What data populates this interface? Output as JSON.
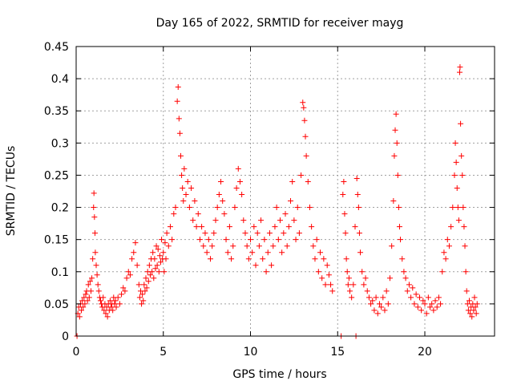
{
  "chart_data": {
    "type": "scatter",
    "title": "Day 165 of 2022, SRMTID for receiver mayg",
    "xlabel": "GPS time / hours",
    "ylabel": "SRMTID / TECUs",
    "xlim": [
      0,
      24
    ],
    "ylim": [
      0,
      0.45
    ],
    "xticks": [
      0,
      5,
      10,
      15,
      20
    ],
    "xtick_labels": [
      "0",
      "5",
      "10",
      "15",
      "20"
    ],
    "yticks": [
      0,
      0.05,
      0.1,
      0.15,
      0.2,
      0.25,
      0.3,
      0.35,
      0.4,
      0.45
    ],
    "ytick_labels": [
      "0",
      "0.05",
      "0.1",
      "0.15",
      "0.2",
      "0.25",
      "0.3",
      "0.35",
      "0.4",
      "0.45"
    ],
    "grid": true,
    "marker": "plus",
    "color": "#ff0000",
    "series": [
      {
        "name": "SRMTID",
        "points": [
          [
            0.05,
            0.0
          ],
          [
            0.1,
            0.035
          ],
          [
            0.15,
            0.045
          ],
          [
            0.2,
            0.03
          ],
          [
            0.25,
            0.05
          ],
          [
            0.3,
            0.04
          ],
          [
            0.35,
            0.055
          ],
          [
            0.4,
            0.045
          ],
          [
            0.45,
            0.06
          ],
          [
            0.5,
            0.05
          ],
          [
            0.55,
            0.065
          ],
          [
            0.6,
            0.07
          ],
          [
            0.65,
            0.055
          ],
          [
            0.7,
            0.08
          ],
          [
            0.75,
            0.06
          ],
          [
            0.8,
            0.085
          ],
          [
            0.85,
            0.07
          ],
          [
            0.9,
            0.09
          ],
          [
            0.95,
            0.12
          ],
          [
            1.0,
            0.2
          ],
          [
            1.02,
            0.222
          ],
          [
            1.05,
            0.185
          ],
          [
            1.08,
            0.16
          ],
          [
            1.1,
            0.13
          ],
          [
            1.15,
            0.11
          ],
          [
            1.2,
            0.095
          ],
          [
            1.25,
            0.08
          ],
          [
            1.3,
            0.07
          ],
          [
            1.35,
            0.06
          ],
          [
            1.4,
            0.055
          ],
          [
            1.45,
            0.05
          ],
          [
            1.5,
            0.045
          ],
          [
            1.55,
            0.06
          ],
          [
            1.6,
            0.04
          ],
          [
            1.65,
            0.05
          ],
          [
            1.7,
            0.035
          ],
          [
            1.75,
            0.045
          ],
          [
            1.8,
            0.03
          ],
          [
            1.85,
            0.05
          ],
          [
            1.9,
            0.04
          ],
          [
            1.95,
            0.055
          ],
          [
            2.0,
            0.045
          ],
          [
            2.05,
            0.05
          ],
          [
            2.1,
            0.04
          ],
          [
            2.15,
            0.06
          ],
          [
            2.2,
            0.05
          ],
          [
            2.25,
            0.055
          ],
          [
            2.3,
            0.045
          ],
          [
            2.4,
            0.06
          ],
          [
            2.5,
            0.05
          ],
          [
            2.6,
            0.065
          ],
          [
            2.7,
            0.075
          ],
          [
            2.8,
            0.07
          ],
          [
            2.9,
            0.09
          ],
          [
            3.0,
            0.1
          ],
          [
            3.1,
            0.095
          ],
          [
            3.2,
            0.12
          ],
          [
            3.3,
            0.13
          ],
          [
            3.4,
            0.145
          ],
          [
            3.5,
            0.11
          ],
          [
            3.6,
            0.08
          ],
          [
            3.65,
            0.06
          ],
          [
            3.7,
            0.07
          ],
          [
            3.75,
            0.05
          ],
          [
            3.8,
            0.065
          ],
          [
            3.85,
            0.055
          ],
          [
            3.9,
            0.08
          ],
          [
            3.95,
            0.07
          ],
          [
            4.0,
            0.09
          ],
          [
            4.05,
            0.075
          ],
          [
            4.1,
            0.1
          ],
          [
            4.15,
            0.085
          ],
          [
            4.2,
            0.11
          ],
          [
            4.25,
            0.095
          ],
          [
            4.3,
            0.12
          ],
          [
            4.35,
            0.1
          ],
          [
            4.4,
            0.13
          ],
          [
            4.45,
            0.09
          ],
          [
            4.5,
            0.12
          ],
          [
            4.55,
            0.105
          ],
          [
            4.6,
            0.14
          ],
          [
            4.65,
            0.11
          ],
          [
            4.7,
            0.135
          ],
          [
            4.75,
            0.1
          ],
          [
            4.8,
            0.125
          ],
          [
            4.85,
            0.115
          ],
          [
            4.9,
            0.15
          ],
          [
            4.95,
            0.12
          ],
          [
            5.0,
            0.13
          ],
          [
            5.05,
            0.1
          ],
          [
            5.1,
            0.145
          ],
          [
            5.15,
            0.12
          ],
          [
            5.2,
            0.16
          ],
          [
            5.3,
            0.14
          ],
          [
            5.4,
            0.17
          ],
          [
            5.5,
            0.15
          ],
          [
            5.6,
            0.19
          ],
          [
            5.7,
            0.2
          ],
          [
            5.8,
            0.365
          ],
          [
            5.85,
            0.387
          ],
          [
            5.9,
            0.338
          ],
          [
            5.95,
            0.315
          ],
          [
            6.0,
            0.28
          ],
          [
            6.05,
            0.25
          ],
          [
            6.1,
            0.23
          ],
          [
            6.15,
            0.21
          ],
          [
            6.2,
            0.26
          ],
          [
            6.3,
            0.22
          ],
          [
            6.4,
            0.24
          ],
          [
            6.5,
            0.2
          ],
          [
            6.6,
            0.23
          ],
          [
            6.7,
            0.18
          ],
          [
            6.8,
            0.21
          ],
          [
            6.9,
            0.17
          ],
          [
            7.0,
            0.19
          ],
          [
            7.1,
            0.15
          ],
          [
            7.2,
            0.17
          ],
          [
            7.3,
            0.14
          ],
          [
            7.4,
            0.16
          ],
          [
            7.5,
            0.13
          ],
          [
            7.6,
            0.15
          ],
          [
            7.7,
            0.12
          ],
          [
            7.8,
            0.14
          ],
          [
            7.9,
            0.16
          ],
          [
            8.0,
            0.18
          ],
          [
            8.1,
            0.2
          ],
          [
            8.2,
            0.22
          ],
          [
            8.3,
            0.24
          ],
          [
            8.4,
            0.21
          ],
          [
            8.5,
            0.19
          ],
          [
            8.6,
            0.15
          ],
          [
            8.7,
            0.13
          ],
          [
            8.8,
            0.17
          ],
          [
            8.9,
            0.12
          ],
          [
            9.0,
            0.14
          ],
          [
            9.1,
            0.2
          ],
          [
            9.2,
            0.23
          ],
          [
            9.3,
            0.26
          ],
          [
            9.4,
            0.24
          ],
          [
            9.5,
            0.22
          ],
          [
            9.6,
            0.18
          ],
          [
            9.7,
            0.16
          ],
          [
            9.8,
            0.14
          ],
          [
            9.9,
            0.12
          ],
          [
            10.0,
            0.15
          ],
          [
            10.1,
            0.13
          ],
          [
            10.2,
            0.17
          ],
          [
            10.3,
            0.11
          ],
          [
            10.4,
            0.16
          ],
          [
            10.5,
            0.14
          ],
          [
            10.6,
            0.18
          ],
          [
            10.7,
            0.12
          ],
          [
            10.8,
            0.15
          ],
          [
            10.9,
            0.1
          ],
          [
            11.0,
            0.13
          ],
          [
            11.1,
            0.16
          ],
          [
            11.2,
            0.11
          ],
          [
            11.3,
            0.14
          ],
          [
            11.4,
            0.17
          ],
          [
            11.5,
            0.2
          ],
          [
            11.6,
            0.15
          ],
          [
            11.7,
            0.18
          ],
          [
            11.8,
            0.13
          ],
          [
            11.9,
            0.16
          ],
          [
            12.0,
            0.19
          ],
          [
            12.1,
            0.14
          ],
          [
            12.2,
            0.17
          ],
          [
            12.3,
            0.21
          ],
          [
            12.4,
            0.24
          ],
          [
            12.5,
            0.18
          ],
          [
            12.6,
            0.15
          ],
          [
            12.7,
            0.2
          ],
          [
            12.8,
            0.16
          ],
          [
            12.9,
            0.25
          ],
          [
            13.0,
            0.363
          ],
          [
            13.05,
            0.355
          ],
          [
            13.1,
            0.335
          ],
          [
            13.15,
            0.31
          ],
          [
            13.2,
            0.28
          ],
          [
            13.3,
            0.24
          ],
          [
            13.4,
            0.2
          ],
          [
            13.5,
            0.17
          ],
          [
            13.6,
            0.14
          ],
          [
            13.7,
            0.12
          ],
          [
            13.8,
            0.15
          ],
          [
            13.9,
            0.1
          ],
          [
            14.0,
            0.13
          ],
          [
            14.1,
            0.09
          ],
          [
            14.2,
            0.12
          ],
          [
            14.3,
            0.08
          ],
          [
            14.4,
            0.11
          ],
          [
            14.5,
            0.095
          ],
          [
            14.6,
            0.08
          ],
          [
            14.7,
            0.07
          ],
          [
            15.2,
            0.0
          ],
          [
            15.3,
            0.22
          ],
          [
            15.35,
            0.24
          ],
          [
            15.4,
            0.19
          ],
          [
            15.45,
            0.16
          ],
          [
            15.5,
            0.12
          ],
          [
            15.55,
            0.1
          ],
          [
            15.6,
            0.08
          ],
          [
            15.65,
            0.09
          ],
          [
            15.7,
            0.07
          ],
          [
            15.8,
            0.06
          ],
          [
            15.9,
            0.08
          ],
          [
            16.0,
            0.17
          ],
          [
            16.05,
            0.0
          ],
          [
            16.1,
            0.245
          ],
          [
            16.15,
            0.22
          ],
          [
            16.2,
            0.2
          ],
          [
            16.25,
            0.16
          ],
          [
            16.3,
            0.13
          ],
          [
            16.4,
            0.1
          ],
          [
            16.5,
            0.08
          ],
          [
            16.6,
            0.09
          ],
          [
            16.7,
            0.07
          ],
          [
            16.8,
            0.06
          ],
          [
            16.9,
            0.05
          ],
          [
            17.0,
            0.055
          ],
          [
            17.1,
            0.04
          ],
          [
            17.2,
            0.06
          ],
          [
            17.3,
            0.035
          ],
          [
            17.4,
            0.05
          ],
          [
            17.5,
            0.045
          ],
          [
            17.6,
            0.06
          ],
          [
            17.7,
            0.04
          ],
          [
            17.8,
            0.07
          ],
          [
            17.9,
            0.05
          ],
          [
            18.0,
            0.09
          ],
          [
            18.1,
            0.14
          ],
          [
            18.2,
            0.21
          ],
          [
            18.25,
            0.28
          ],
          [
            18.3,
            0.32
          ],
          [
            18.35,
            0.345
          ],
          [
            18.4,
            0.3
          ],
          [
            18.45,
            0.25
          ],
          [
            18.5,
            0.2
          ],
          [
            18.55,
            0.17
          ],
          [
            18.6,
            0.15
          ],
          [
            18.7,
            0.12
          ],
          [
            18.8,
            0.1
          ],
          [
            18.9,
            0.09
          ],
          [
            19.0,
            0.07
          ],
          [
            19.1,
            0.08
          ],
          [
            19.2,
            0.06
          ],
          [
            19.3,
            0.075
          ],
          [
            19.4,
            0.05
          ],
          [
            19.5,
            0.065
          ],
          [
            19.6,
            0.045
          ],
          [
            19.7,
            0.06
          ],
          [
            19.8,
            0.04
          ],
          [
            19.9,
            0.055
          ],
          [
            20.0,
            0.05
          ],
          [
            20.1,
            0.035
          ],
          [
            20.2,
            0.06
          ],
          [
            20.3,
            0.045
          ],
          [
            20.4,
            0.05
          ],
          [
            20.5,
            0.04
          ],
          [
            20.6,
            0.055
          ],
          [
            20.7,
            0.045
          ],
          [
            20.8,
            0.06
          ],
          [
            20.9,
            0.05
          ],
          [
            21.0,
            0.1
          ],
          [
            21.1,
            0.13
          ],
          [
            21.2,
            0.12
          ],
          [
            21.3,
            0.15
          ],
          [
            21.4,
            0.14
          ],
          [
            21.5,
            0.17
          ],
          [
            21.6,
            0.2
          ],
          [
            21.7,
            0.25
          ],
          [
            21.75,
            0.3
          ],
          [
            21.8,
            0.27
          ],
          [
            21.85,
            0.23
          ],
          [
            21.9,
            0.2
          ],
          [
            21.95,
            0.18
          ],
          [
            22.0,
            0.41
          ],
          [
            22.02,
            0.418
          ],
          [
            22.05,
            0.33
          ],
          [
            22.1,
            0.28
          ],
          [
            22.15,
            0.25
          ],
          [
            22.2,
            0.2
          ],
          [
            22.25,
            0.17
          ],
          [
            22.3,
            0.14
          ],
          [
            22.35,
            0.1
          ],
          [
            22.4,
            0.07
          ],
          [
            22.45,
            0.05
          ],
          [
            22.5,
            0.04
          ],
          [
            22.55,
            0.055
          ],
          [
            22.6,
            0.035
          ],
          [
            22.65,
            0.045
          ],
          [
            22.7,
            0.03
          ],
          [
            22.75,
            0.05
          ],
          [
            22.8,
            0.04
          ],
          [
            22.85,
            0.06
          ],
          [
            22.9,
            0.045
          ],
          [
            22.95,
            0.035
          ],
          [
            23.0,
            0.05
          ]
        ]
      }
    ]
  }
}
